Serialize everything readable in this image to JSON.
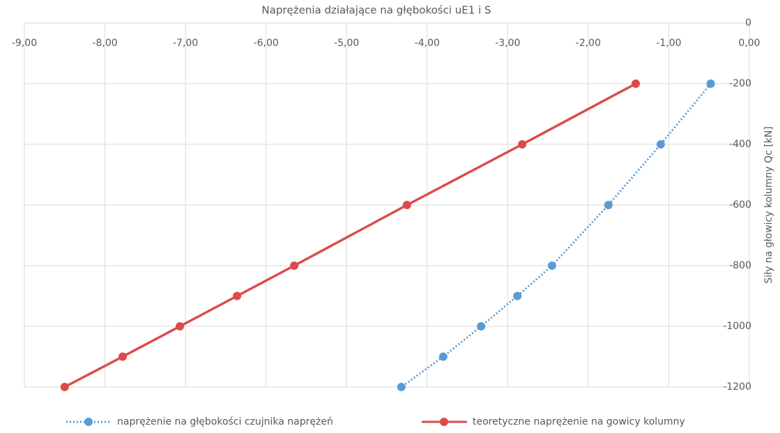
{
  "chart_data": {
    "type": "line",
    "title": "Naprężenia działające na głębokości uE1 i S",
    "y_label": "Siły na głowicy kolumny Qc [kN]",
    "xlim": [
      -9,
      0
    ],
    "xticks": [
      {
        "value": -9,
        "label": "-9,00"
      },
      {
        "value": -8,
        "label": "-8,00"
      },
      {
        "value": -7,
        "label": "-7,00"
      },
      {
        "value": -6,
        "label": "-6,00"
      },
      {
        "value": -5,
        "label": "-5,00"
      },
      {
        "value": -4,
        "label": "-4,00"
      },
      {
        "value": -3,
        "label": "-3,00"
      },
      {
        "value": -2,
        "label": "-2,00"
      },
      {
        "value": -1,
        "label": "-1,00"
      },
      {
        "value": 0,
        "label": "0,00"
      }
    ],
    "ylim": [
      -1200,
      0
    ],
    "yticks": [
      0,
      -200,
      -400,
      -600,
      -800,
      -1000,
      -1200
    ],
    "grid": true,
    "legend": "bottom",
    "series": [
      {
        "name": "naprężenie na głębokości czujnika naprężeń",
        "color": "#5b9bd5",
        "line_style": "dotted",
        "x": [
          -0.48,
          -1.1,
          -1.75,
          -2.45,
          -2.88,
          -3.33,
          -3.8,
          -4.32
        ],
        "values": [
          -200,
          -400,
          -600,
          -800,
          -900,
          -1000,
          -1100,
          -1200
        ]
      },
      {
        "name": "teoretyczne naprężenie na gowicy kolumny",
        "color": "#dc4b4b",
        "line_style": "solid",
        "x": [
          -1.41,
          -2.82,
          -4.25,
          -5.65,
          -6.36,
          -7.07,
          -7.78,
          -8.5
        ],
        "values": [
          -200,
          -400,
          -600,
          -800,
          -900,
          -1000,
          -1100,
          -1200
        ]
      }
    ]
  }
}
